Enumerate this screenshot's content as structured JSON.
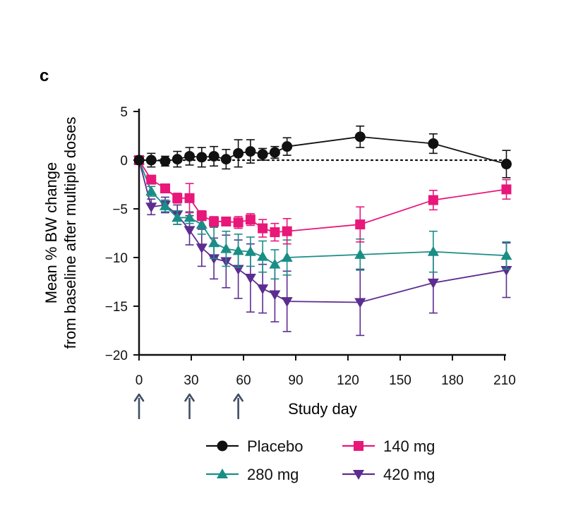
{
  "panel_label": "c",
  "colors": {
    "placebo": "#111111",
    "mg140": "#e8177a",
    "mg280": "#1a8e86",
    "mg420": "#5c2d91",
    "axis": "#111111",
    "arrow": "#3f4f63"
  },
  "chart_data": {
    "type": "line",
    "xlabel": "Study day",
    "ylabel_line1": "Mean % BW change",
    "ylabel_line2": "from baseline after multiple doses",
    "xlim": [
      0,
      210
    ],
    "ylim": [
      -20,
      5
    ],
    "xticks": [
      0,
      30,
      60,
      90,
      120,
      150,
      180,
      210
    ],
    "yticks": [
      5,
      0,
      -5,
      -10,
      -15,
      -20
    ],
    "reference_line_y": 0,
    "dose_days": [
      0,
      29,
      57
    ],
    "series": [
      {
        "key": "placebo",
        "name": "Placebo",
        "marker": "circle",
        "x": [
          0,
          7,
          15,
          22,
          29,
          36,
          43,
          50,
          57,
          64,
          71,
          78,
          85,
          127,
          169,
          211
        ],
        "y": [
          0,
          0,
          -0.1,
          0.1,
          0.4,
          0.3,
          0.4,
          0.1,
          0.7,
          0.9,
          0.6,
          0.8,
          1.4,
          2.4,
          1.7,
          -0.4
        ],
        "err": [
          0,
          0.7,
          0.5,
          0.8,
          0.9,
          1.0,
          1.0,
          1.0,
          1.4,
          1.2,
          0.6,
          0.6,
          0.9,
          1.1,
          1.0,
          1.4
        ]
      },
      {
        "key": "mg140",
        "name": "140 mg",
        "marker": "square",
        "x": [
          0,
          7,
          15,
          22,
          29,
          36,
          43,
          50,
          57,
          64,
          71,
          78,
          85,
          127,
          169,
          211
        ],
        "y": [
          0,
          -2.0,
          -2.9,
          -3.9,
          -3.9,
          -5.7,
          -6.3,
          -6.3,
          -6.4,
          -6.1,
          -7.0,
          -7.4,
          -7.3,
          -6.6,
          -4.1,
          -3.0
        ],
        "err": [
          0,
          0.4,
          0.4,
          0.5,
          1.5,
          0.5,
          0.5,
          0.4,
          0.6,
          0.6,
          0.9,
          0.9,
          1.3,
          1.8,
          1.0,
          1.0
        ]
      },
      {
        "key": "mg280",
        "name": "280 mg",
        "marker": "triangle-up",
        "x": [
          0,
          7,
          15,
          22,
          29,
          36,
          43,
          50,
          57,
          64,
          71,
          78,
          85,
          127,
          169,
          211
        ],
        "y": [
          0,
          -3.2,
          -4.7,
          -5.9,
          -5.9,
          -6.6,
          -8.5,
          -9.1,
          -9.3,
          -9.4,
          -9.9,
          -10.7,
          -10.0,
          -9.7,
          -9.4,
          -9.8
        ],
        "err": [
          0,
          0.5,
          0.6,
          0.7,
          0.6,
          1.0,
          1.6,
          1.8,
          1.7,
          1.5,
          1.6,
          1.5,
          1.8,
          1.6,
          2.1,
          1.4
        ]
      },
      {
        "key": "mg420",
        "name": "420 mg",
        "marker": "triangle-down",
        "x": [
          0,
          7,
          15,
          22,
          29,
          36,
          43,
          50,
          57,
          64,
          71,
          78,
          85,
          127,
          169,
          211
        ],
        "y": [
          0,
          -4.8,
          -4.6,
          -5.6,
          -7.2,
          -9.0,
          -10.1,
          -10.4,
          -11.2,
          -12.1,
          -13.2,
          -13.8,
          -14.5,
          -14.6,
          -12.6,
          -11.3
        ],
        "err": [
          0,
          0.8,
          0.8,
          1.0,
          1.5,
          1.9,
          2.1,
          2.7,
          3.0,
          3.5,
          2.5,
          2.8,
          3.1,
          3.4,
          3.1,
          2.8
        ]
      }
    ],
    "legend": {
      "rows": [
        [
          "placebo",
          "mg140"
        ],
        [
          "mg280",
          "mg420"
        ]
      ]
    }
  }
}
